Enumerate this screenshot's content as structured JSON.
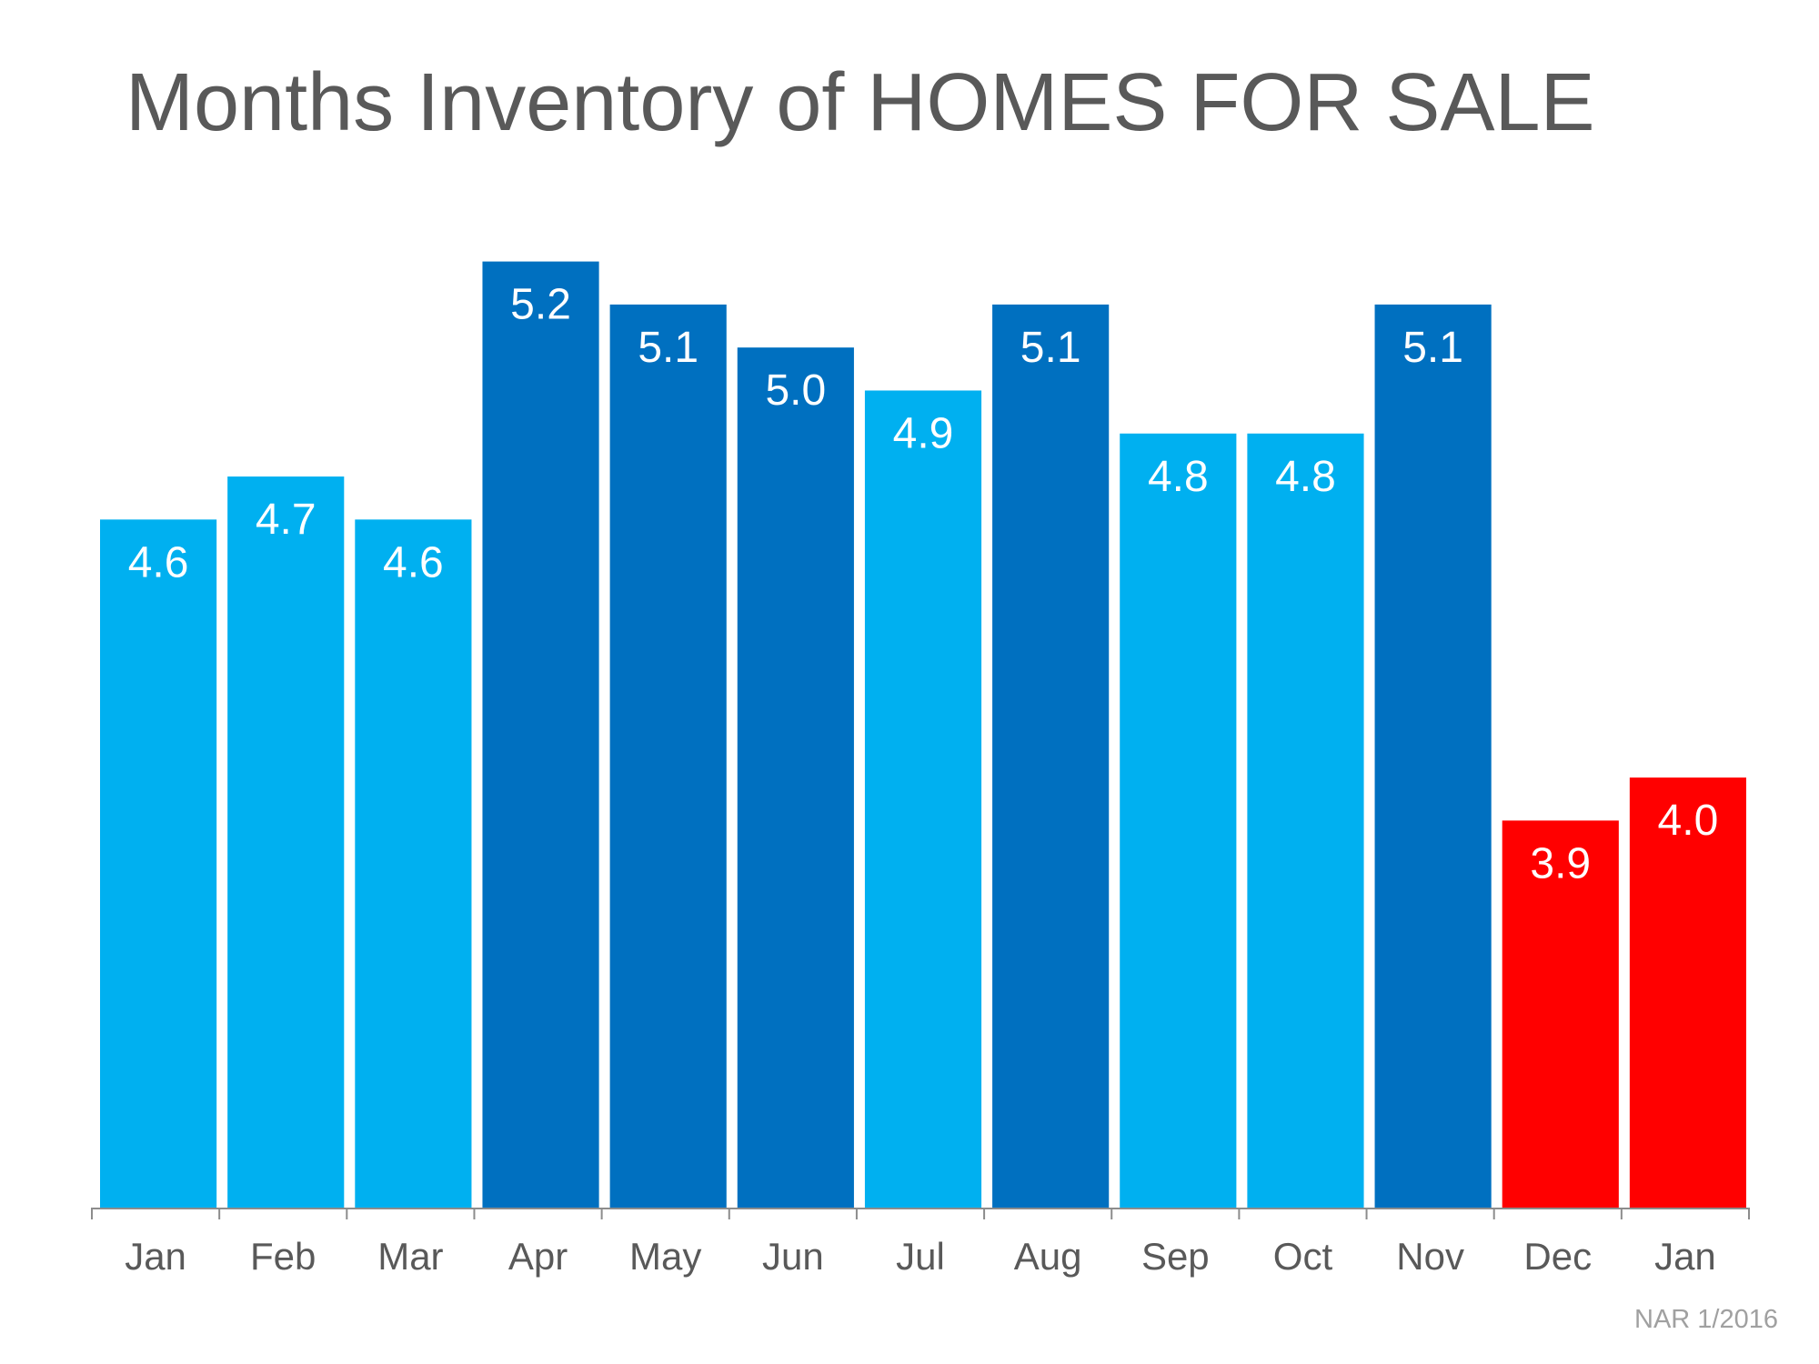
{
  "chart_data": {
    "type": "bar",
    "title": "Months Inventory of HOMES FOR SALE",
    "source": "NAR 1/2016",
    "xlabel": "",
    "ylabel": "",
    "ylim": [
      3.0,
      5.4
    ],
    "grid": false,
    "legend": "none",
    "categories": [
      "Jan",
      "Feb",
      "Mar",
      "Apr",
      "May",
      "Jun",
      "Jul",
      "Aug",
      "Sep",
      "Oct",
      "Nov",
      "Dec",
      "Jan"
    ],
    "values": [
      4.6,
      4.7,
      4.6,
      5.2,
      5.1,
      5.0,
      4.9,
      5.1,
      4.8,
      4.8,
      5.1,
      3.9,
      4.0
    ],
    "value_labels": [
      "4.6",
      "4.7",
      "4.6",
      "5.2",
      "5.1",
      "5.0",
      "4.9",
      "5.1",
      "4.8",
      "4.8",
      "5.1",
      "3.9",
      "4.0"
    ],
    "bar_colors": [
      "#00B0F0",
      "#00B0F0",
      "#00B0F0",
      "#0070C0",
      "#0070C0",
      "#0070C0",
      "#00B0F0",
      "#0070C0",
      "#00B0F0",
      "#00B0F0",
      "#0070C0",
      "#FF0000",
      "#FF0000"
    ]
  }
}
